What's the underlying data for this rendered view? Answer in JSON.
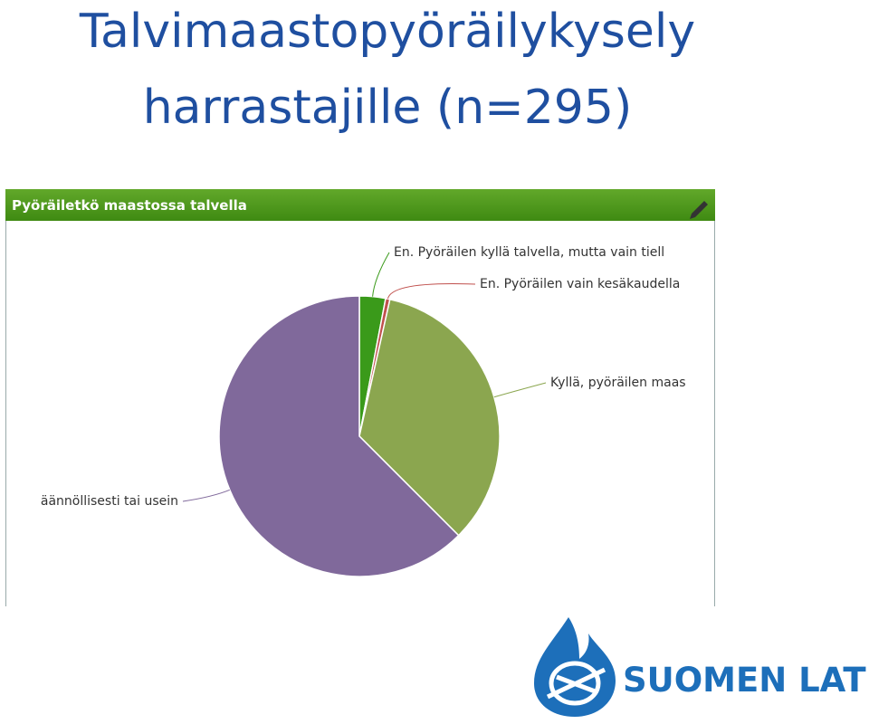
{
  "slide": {
    "title_lines": [
      "Talvimaastopyöräilykysely",
      "harrastajille (n=295)"
    ],
    "logo_text": "SUOMEN LATU"
  },
  "chart_data": {
    "type": "pie",
    "title": "Pyöräiletkö maastossa talvella",
    "categories": [
      "En. Pyöräilen kyllä talvella, mutta vain tiell",
      "En. Pyöräilen vain kesäkaudella",
      "Kyllä, pyöräilen maas",
      "äännöllisesti tai usein"
    ],
    "values": [
      3,
      0.5,
      34,
      62.5
    ],
    "colors": [
      "#3a9a1a",
      "#c0504d",
      "#8ba64f",
      "#80699b"
    ]
  }
}
